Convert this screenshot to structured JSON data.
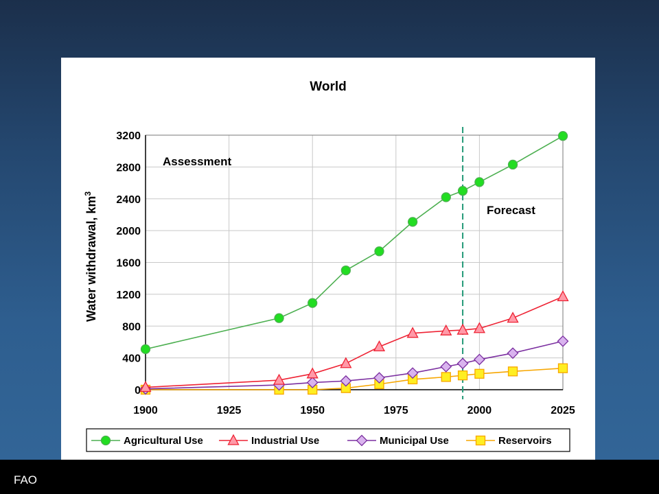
{
  "footer": {
    "source": "FAO"
  },
  "chart_data": {
    "type": "line",
    "title": "World",
    "xlabel": "",
    "ylabel": "Water withdrawal, km",
    "ylabel_superscript": "3",
    "xlim": [
      1900,
      2025
    ],
    "ylim": [
      0,
      3200
    ],
    "x_ticks": [
      1900,
      1925,
      1950,
      1975,
      2000,
      2025
    ],
    "y_ticks": [
      0,
      400,
      800,
      1200,
      1600,
      2000,
      2400,
      2800,
      3200
    ],
    "grid": true,
    "forecast_line_x": 1995,
    "annotations": {
      "assessment": "Assessment",
      "forecast": "Forecast"
    },
    "legend_position": "bottom",
    "series": [
      {
        "name": "Agricultural Use",
        "color": "#4caf50",
        "fill": "#22dd22",
        "marker": "circle",
        "x": [
          1900,
          1940,
          1950,
          1960,
          1970,
          1980,
          1990,
          1995,
          2000,
          2010,
          2025
        ],
        "values": [
          510,
          900,
          1090,
          1500,
          1740,
          2110,
          2420,
          2500,
          2610,
          2830,
          3190
        ]
      },
      {
        "name": "Industrial Use",
        "color": "#ee2233",
        "fill": "#ff9aa8",
        "marker": "triangle",
        "x": [
          1900,
          1940,
          1950,
          1960,
          1970,
          1980,
          1990,
          1995,
          2000,
          2010,
          2025
        ],
        "values": [
          30,
          120,
          200,
          330,
          540,
          710,
          740,
          750,
          770,
          900,
          1170
        ]
      },
      {
        "name": "Municipal Use",
        "color": "#7b2fa0",
        "fill": "#d9b3ee",
        "marker": "diamond",
        "x": [
          1900,
          1940,
          1950,
          1960,
          1970,
          1980,
          1990,
          1995,
          2000,
          2010,
          2025
        ],
        "values": [
          10,
          60,
          90,
          110,
          150,
          210,
          290,
          330,
          380,
          460,
          610
        ]
      },
      {
        "name": "Reservoirs",
        "color": "#f7a600",
        "fill": "#ffee22",
        "marker": "square",
        "x": [
          1900,
          1940,
          1950,
          1960,
          1970,
          1980,
          1990,
          1995,
          2000,
          2010,
          2025
        ],
        "values": [
          0,
          0,
          0,
          20,
          70,
          130,
          160,
          180,
          200,
          230,
          270
        ]
      }
    ]
  }
}
